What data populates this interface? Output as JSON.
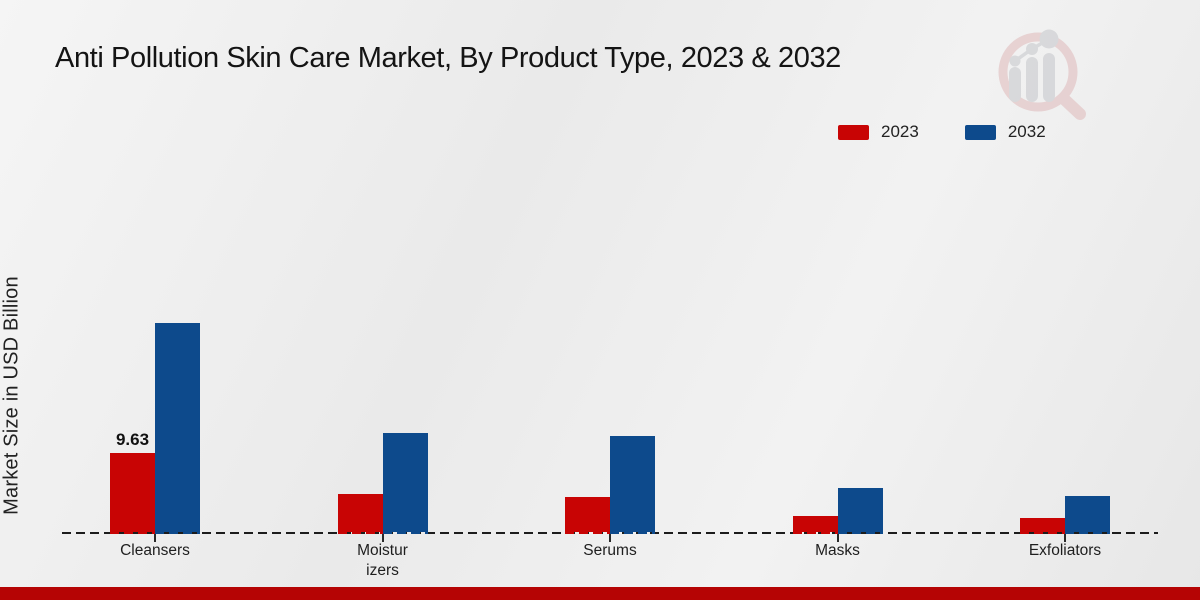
{
  "title": "Anti Pollution Skin Care Market, By Product Type, 2023 & 2032",
  "ylabel": "Market Size in USD Billion",
  "legend": {
    "items": [
      {
        "label": "2023",
        "color": "#c80404"
      },
      {
        "label": "2032",
        "color": "#0d4a8c"
      }
    ]
  },
  "footer": {
    "stripe_color": "#b50404"
  },
  "logo": {
    "ring_color": "#dfb9ba",
    "bars_color": "#c4c6ca"
  },
  "chart_data": {
    "type": "bar",
    "title": "Anti Pollution Skin Care Market, By Product Type, 2023 & 2032",
    "xlabel": "Product Type",
    "ylabel": "Market Size in USD Billion",
    "unit": "USD Billion",
    "categories": [
      "Cleansers",
      "Moisturizers",
      "Serums",
      "Masks",
      "Exfoliators"
    ],
    "category_display": [
      "Cleansers",
      "Moistur\nizers",
      "Serums",
      "Masks",
      "Exfoliators"
    ],
    "series": [
      {
        "name": "2023",
        "color": "#c80404",
        "values": [
          9.63,
          4.6,
          4.3,
          2.0,
          1.7
        ],
        "bar_labels": [
          "9.63",
          "",
          "",
          "",
          ""
        ]
      },
      {
        "name": "2032",
        "color": "#0d4a8c",
        "values": [
          25.5,
          12.1,
          11.7,
          5.4,
          4.4
        ],
        "bar_labels": [
          "",
          "",
          "",
          "",
          ""
        ]
      }
    ],
    "ylim": [
      0,
      30
    ],
    "grid": "off",
    "axis_style": "dashed-zero-line-only",
    "legend_position": "top-right"
  }
}
